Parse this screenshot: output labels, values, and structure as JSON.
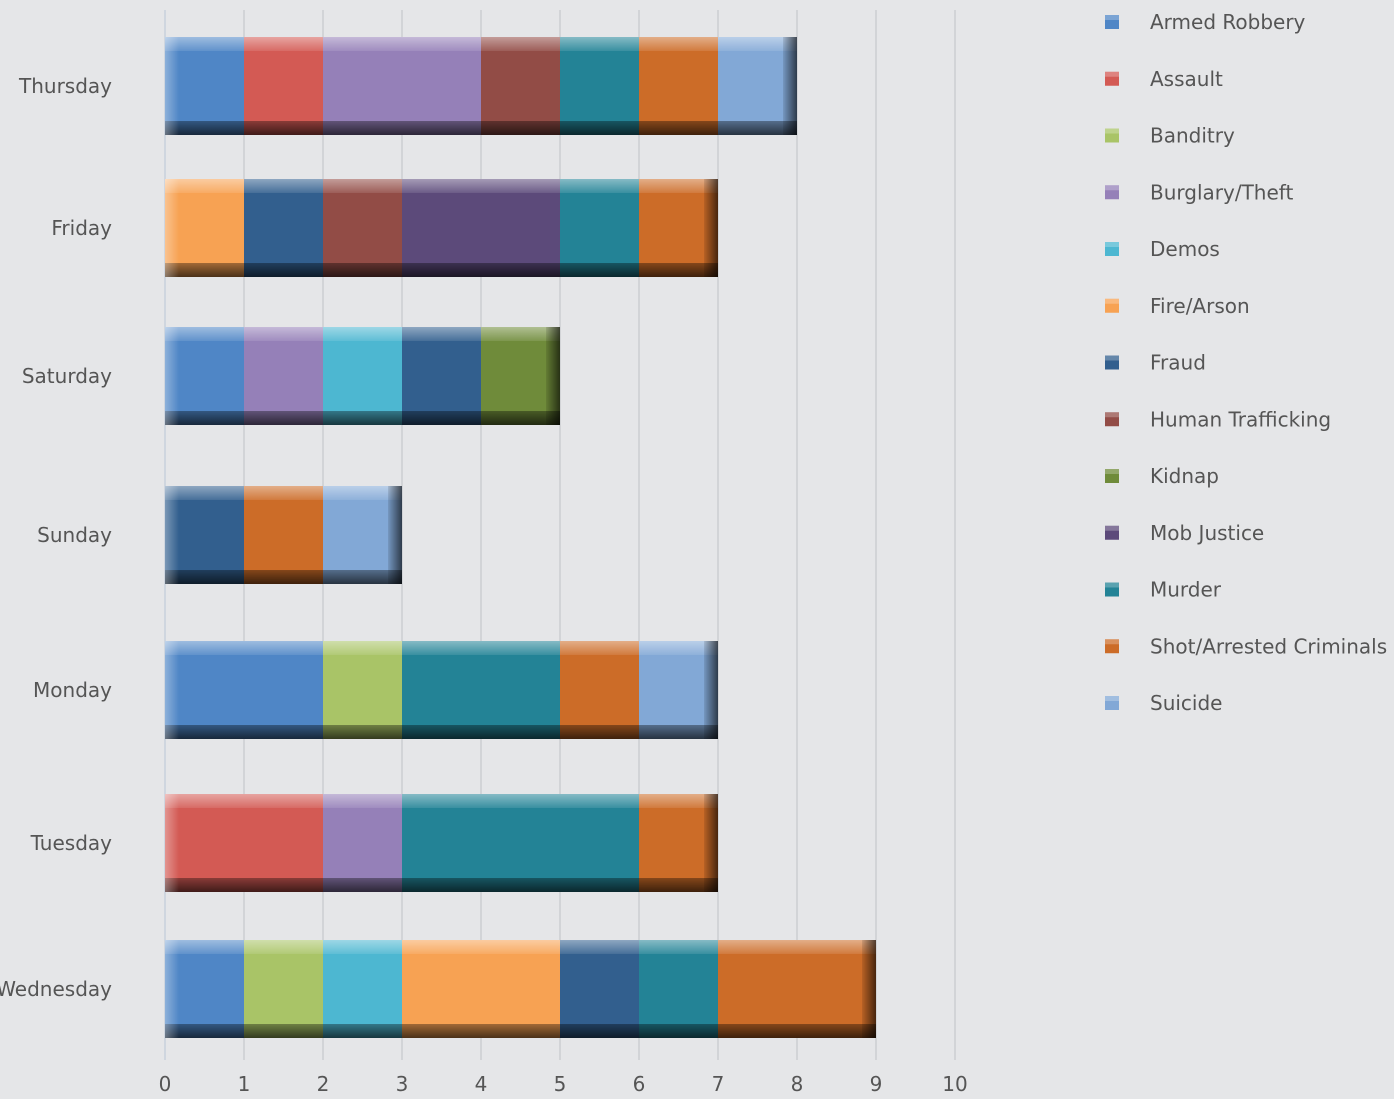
{
  "chart_data": {
    "type": "bar",
    "orientation": "horizontal",
    "stacked": true,
    "style": "3d-bevel",
    "categories": [
      "Thursday",
      "Friday",
      "Saturday",
      "Sunday",
      "Monday",
      "Tuesday",
      "Wednesday"
    ],
    "series": [
      {
        "name": "Armed Robbery",
        "color": "#4f86c6",
        "values": [
          1,
          0,
          1,
          0,
          2,
          0,
          1
        ]
      },
      {
        "name": "Assault",
        "color": "#d35a54",
        "values": [
          1,
          0,
          0,
          0,
          0,
          2,
          0
        ]
      },
      {
        "name": "Banditry",
        "color": "#a9c467",
        "values": [
          0,
          0,
          0,
          0,
          1,
          0,
          1
        ]
      },
      {
        "name": "Burglary/Theft",
        "color": "#9580b8",
        "values": [
          2,
          0,
          1,
          0,
          0,
          1,
          0
        ]
      },
      {
        "name": "Demos",
        "color": "#4db7d1",
        "values": [
          0,
          0,
          1,
          0,
          0,
          0,
          1
        ]
      },
      {
        "name": "Fire/Arson",
        "color": "#f7a253",
        "values": [
          0,
          1,
          0,
          0,
          0,
          0,
          2
        ]
      },
      {
        "name": "Fraud",
        "color": "#325f8e",
        "values": [
          0,
          1,
          1,
          1,
          0,
          0,
          1
        ]
      },
      {
        "name": "Human Trafficking",
        "color": "#924c46",
        "values": [
          1,
          1,
          0,
          0,
          0,
          0,
          0
        ]
      },
      {
        "name": "Kidnap",
        "color": "#6f8b3a",
        "values": [
          0,
          0,
          1,
          0,
          0,
          0,
          0
        ]
      },
      {
        "name": "Mob Justice",
        "color": "#5c4a7a",
        "values": [
          0,
          2,
          0,
          0,
          0,
          0,
          0
        ]
      },
      {
        "name": "Murder",
        "color": "#238396",
        "values": [
          1,
          1,
          0,
          0,
          2,
          3,
          1
        ]
      },
      {
        "name": "Shot/Arrested Criminals",
        "color": "#cc6c28",
        "values": [
          1,
          1,
          0,
          1,
          1,
          1,
          2
        ]
      },
      {
        "name": "Suicide",
        "color": "#82a8d6",
        "values": [
          1,
          0,
          0,
          1,
          1,
          0,
          0
        ]
      }
    ],
    "xlim": [
      0,
      10
    ],
    "xticks": [
      "0",
      "1",
      "2",
      "3",
      "4",
      "5",
      "6",
      "7",
      "8",
      "9",
      "10"
    ],
    "title": "",
    "xlabel": "",
    "ylabel": "",
    "grid": "vertical",
    "legend_position": "right"
  },
  "colors": {
    "background": "#e5e6e8",
    "gridline": "#d2d4d7",
    "text": "#555555"
  }
}
